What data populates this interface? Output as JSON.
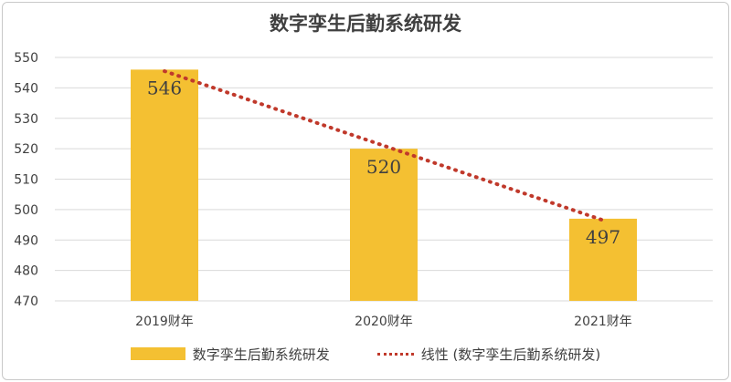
{
  "chart_data": {
    "type": "bar",
    "title": "数字孪生后勤系统研发",
    "categories": [
      "2019财年",
      "2020财年",
      "2021财年"
    ],
    "series": [
      {
        "name": "数字孪生后勤系统研发",
        "values": [
          546,
          520,
          497
        ]
      }
    ],
    "trendline": {
      "name": "线性 (数字孪生后勤系统研发)",
      "type": "linear"
    },
    "ylim": [
      470,
      550
    ],
    "yticks": [
      470,
      480,
      490,
      500,
      510,
      520,
      530,
      540,
      550
    ],
    "grid": true,
    "legend_position": "bottom",
    "colors": {
      "bar": "#F4C032",
      "trend": "#C0392B",
      "grid": "#D9D9D9",
      "text": "#404040"
    }
  }
}
